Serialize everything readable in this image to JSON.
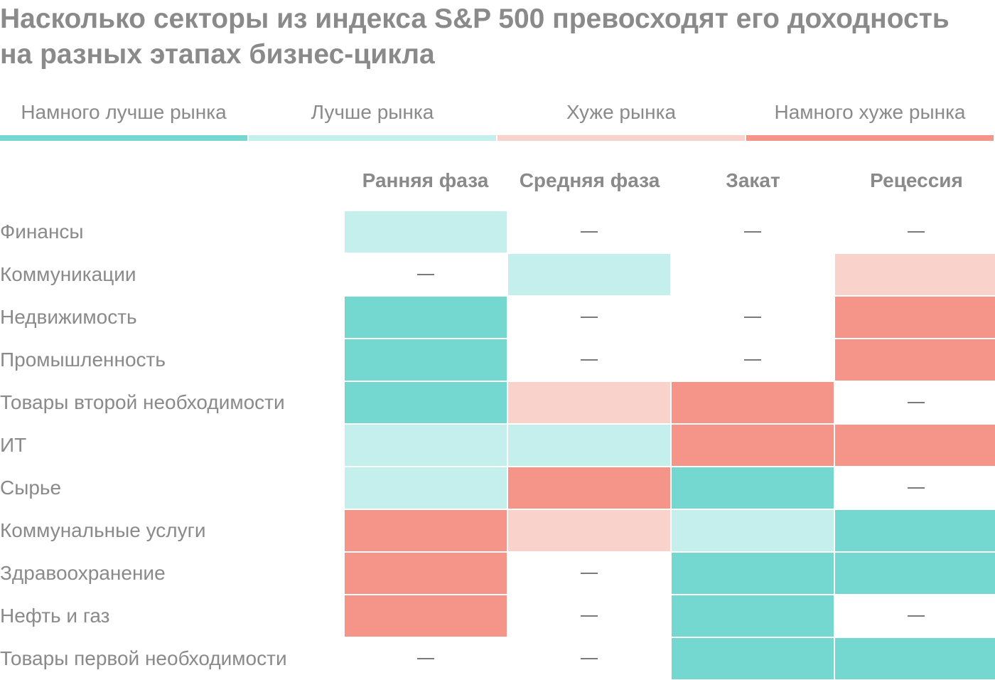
{
  "title": "Насколько секторы из индекса S&P 500 превосходят его доходность на разных этапах бизнес-цикла",
  "colors": {
    "much_better": "#74d7d0",
    "better": "#c4efec",
    "worse": "#f9d2cc",
    "much_worse": "#f59589",
    "text": "#8a8a8a",
    "dash": "#7a7a7a"
  },
  "legend": [
    {
      "key": "much_better",
      "label": "Намного лучше рынка"
    },
    {
      "key": "better",
      "label": "Лучше рынка"
    },
    {
      "key": "worse",
      "label": "Хуже рынка"
    },
    {
      "key": "much_worse",
      "label": "Намного хуже рынка"
    }
  ],
  "chart_data": {
    "type": "heatmap",
    "title": "Насколько секторы из индекса S&P 500 превосходят его доходность на разных этапах бизнес-цикла",
    "columns": [
      "Ранняя фаза",
      "Средняя фаза",
      "Закат",
      "Рецессия"
    ],
    "rows": [
      "Финансы",
      "Коммуникации",
      "Недвижимость",
      "Промышленность",
      "Товары второй необходимости",
      "ИТ",
      "Сырье",
      "Коммунальные услуги",
      "Здравоохранение",
      "Нефть и газ",
      "Товары первой необходимости"
    ],
    "values": [
      [
        "better",
        "none",
        "none",
        "none"
      ],
      [
        "none",
        "better",
        "blank",
        "worse"
      ],
      [
        "much_better",
        "none",
        "none",
        "much_worse"
      ],
      [
        "much_better",
        "none",
        "none",
        "much_worse"
      ],
      [
        "much_better",
        "worse",
        "much_worse",
        "none"
      ],
      [
        "better",
        "better",
        "much_worse",
        "much_worse"
      ],
      [
        "better",
        "much_worse",
        "much_better",
        "none"
      ],
      [
        "much_worse",
        "worse",
        "better",
        "much_better"
      ],
      [
        "much_worse",
        "none",
        "much_better",
        "much_better"
      ],
      [
        "much_worse",
        "none",
        "much_better",
        "none"
      ],
      [
        "none",
        "none",
        "much_better",
        "much_better"
      ]
    ],
    "no_data_mark": "—"
  }
}
